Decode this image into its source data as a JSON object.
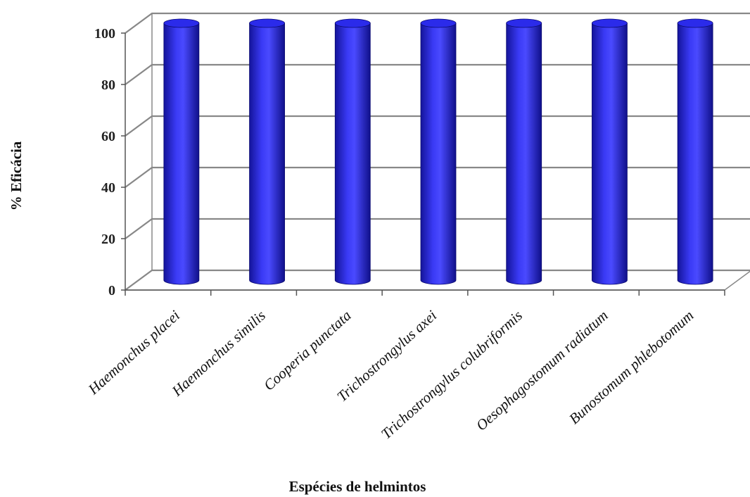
{
  "chart_data": {
    "type": "bar",
    "style": "3d-cylinder",
    "title": "",
    "xlabel": "Espécies de helmintos",
    "ylabel": "% Eficácia",
    "ylim": [
      0,
      100
    ],
    "yticks": [
      0,
      20,
      40,
      60,
      80,
      100
    ],
    "grid": true,
    "legend": "none",
    "bar_color": "#2222dd",
    "categories": [
      "Haemonchus placei",
      "Haemonchus similis",
      "Cooperia punctata",
      "Trichostrongylus axei",
      "Trichostrongylus colubriformis",
      "Oesophagostomum radiatum",
      "Bunostomum phlebotomum"
    ],
    "values": [
      100,
      100,
      100,
      100,
      100,
      100,
      100
    ]
  }
}
